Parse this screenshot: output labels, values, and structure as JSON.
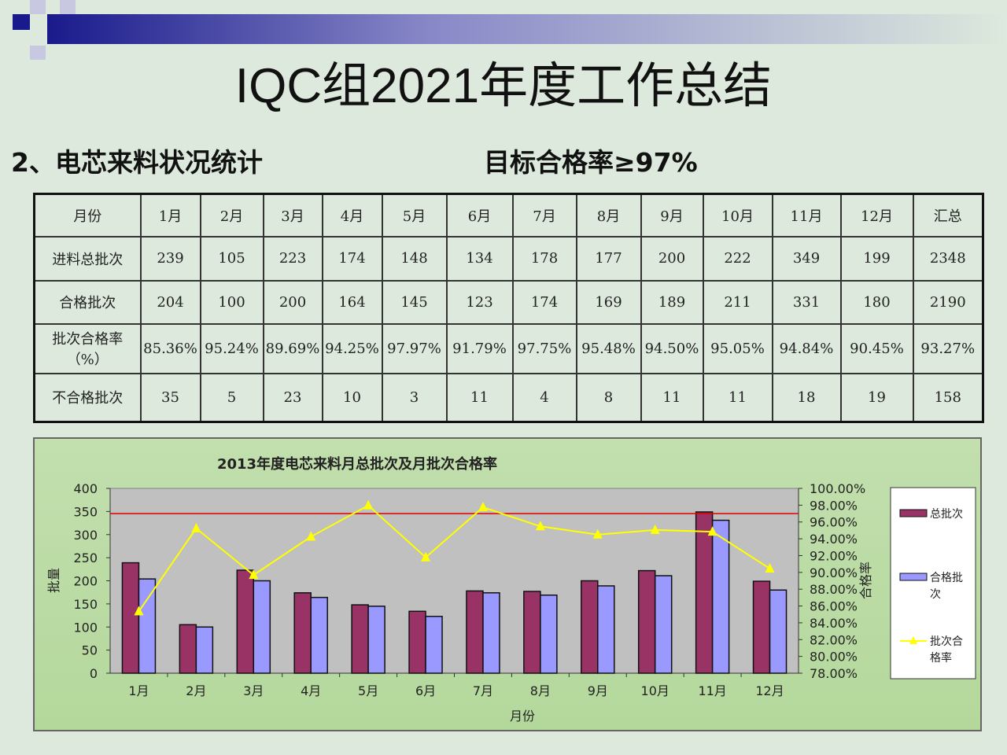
{
  "title": "IQC组2021年度工作总结",
  "subtitle": "2、电芯来料状况统计",
  "target": "目标合格率≥97%",
  "table": {
    "header": [
      "月份",
      "1月",
      "2月",
      "3月",
      "4月",
      "5月",
      "6月",
      "7月",
      "8月",
      "9月",
      "10月",
      "11月",
      "12月",
      "汇总"
    ],
    "rows": [
      [
        "进料总批次",
        "239",
        "105",
        "223",
        "174",
        "148",
        "134",
        "178",
        "177",
        "200",
        "222",
        "349",
        "199",
        "2348"
      ],
      [
        "合格批次",
        "204",
        "100",
        "200",
        "164",
        "145",
        "123",
        "174",
        "169",
        "189",
        "211",
        "331",
        "180",
        "2190"
      ],
      [
        "批次合格率（%）",
        "85.36%",
        "95.24%",
        "89.69%",
        "94.25%",
        "97.97%",
        "91.79%",
        "97.75%",
        "95.48%",
        "94.50%",
        "95.05%",
        "94.84%",
        "90.45%",
        "93.27%"
      ],
      [
        "不合格批次",
        "35",
        "5",
        "23",
        "10",
        "3",
        "11",
        "4",
        "8",
        "11",
        "11",
        "18",
        "19",
        "158"
      ]
    ]
  },
  "chart_data": {
    "type": "bar+line",
    "title": "2013年度电芯来料月总批次及月批次合格率",
    "xlabel": "月份",
    "ylabel": "批量",
    "y2label": "合格率",
    "categories": [
      "1月",
      "2月",
      "3月",
      "4月",
      "5月",
      "6月",
      "7月",
      "8月",
      "9月",
      "10月",
      "11月",
      "12月"
    ],
    "ylim": [
      0,
      400
    ],
    "yticks": [
      "0",
      "50",
      "100",
      "150",
      "200",
      "250",
      "300",
      "350",
      "400"
    ],
    "y2lim": [
      78,
      100
    ],
    "y2ticks": [
      "78.00%",
      "80.00%",
      "82.00%",
      "84.00%",
      "86.00%",
      "88.00%",
      "90.00%",
      "92.00%",
      "94.00%",
      "96.00%",
      "98.00%",
      "100.00%"
    ],
    "target_line": {
      "value": 97,
      "axis": "y2",
      "color": "#e00000"
    },
    "legend": "right",
    "series": [
      {
        "name": "总批次",
        "type": "bar",
        "color": "#993366",
        "values": [
          239,
          105,
          223,
          174,
          148,
          134,
          178,
          177,
          200,
          222,
          349,
          199
        ]
      },
      {
        "name": "合格批次",
        "type": "bar",
        "color": "#9999ff",
        "values": [
          204,
          100,
          200,
          164,
          145,
          123,
          174,
          169,
          189,
          211,
          331,
          180
        ]
      },
      {
        "name": "批次合格率",
        "type": "line",
        "axis": "y2",
        "color": "#ffff00",
        "values": [
          85.36,
          95.24,
          89.69,
          94.25,
          97.97,
          91.79,
          97.75,
          95.48,
          94.5,
          95.05,
          94.84,
          90.45
        ]
      }
    ]
  }
}
